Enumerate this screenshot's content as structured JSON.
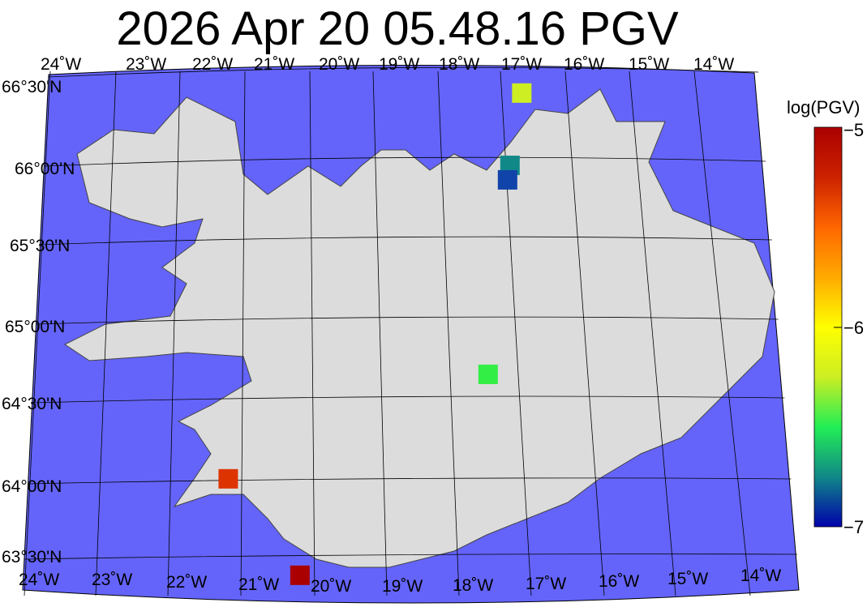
{
  "title": "2026 Apr 20 05.48.16 PGV",
  "colorbar": {
    "label": "log(PGV)",
    "ticks": [
      "−5",
      "−6",
      "−7"
    ],
    "min": -7,
    "max": -5,
    "colors": [
      "#0000aa",
      "#118888",
      "#22ee55",
      "#ccee22",
      "#ffff00",
      "#ffaa00",
      "#ff6600",
      "#cc2200",
      "#aa0000"
    ]
  },
  "map": {
    "ocean_color": "#6464fa",
    "land_color": "#dcdcdc",
    "lat_labels": [
      "66°30'N",
      "66°00'N",
      "65°30'N",
      "65°00'N",
      "64°30'N",
      "64°00'N",
      "63°30'N"
    ],
    "lon_labels_top": [
      "23˚W",
      "22˚W",
      "21˚W",
      "20˚W",
      "19˚W",
      "18˚W",
      "17˚W",
      "16˚W",
      "15˚W",
      "14˚W"
    ],
    "lon_labels_bottom": [
      "24˚W",
      "23˚W",
      "22˚W",
      "21˚W",
      "20˚W",
      "19˚W",
      "18˚W",
      "17˚W",
      "16˚W",
      "15˚W",
      "14˚W"
    ],
    "top_left_overlap_label": "24˚W"
  },
  "stations": [
    {
      "lat": 66.4,
      "lon": -16.7,
      "log_pgv": -5.9,
      "color": "#ccee22"
    },
    {
      "lat": 65.95,
      "lon": -16.95,
      "log_pgv": -6.75,
      "color": "#118888"
    },
    {
      "lat": 65.86,
      "lon": -17.0,
      "log_pgv": -6.9,
      "color": "#1144aa"
    },
    {
      "lat": 64.65,
      "lon": -17.45,
      "log_pgv": -6.5,
      "color": "#33ee44"
    },
    {
      "lat": 64.0,
      "lon": -21.2,
      "log_pgv": -5.2,
      "color": "#dd3300"
    },
    {
      "lat": 63.4,
      "lon": -20.2,
      "log_pgv": -5.0,
      "color": "#aa0000"
    }
  ]
}
